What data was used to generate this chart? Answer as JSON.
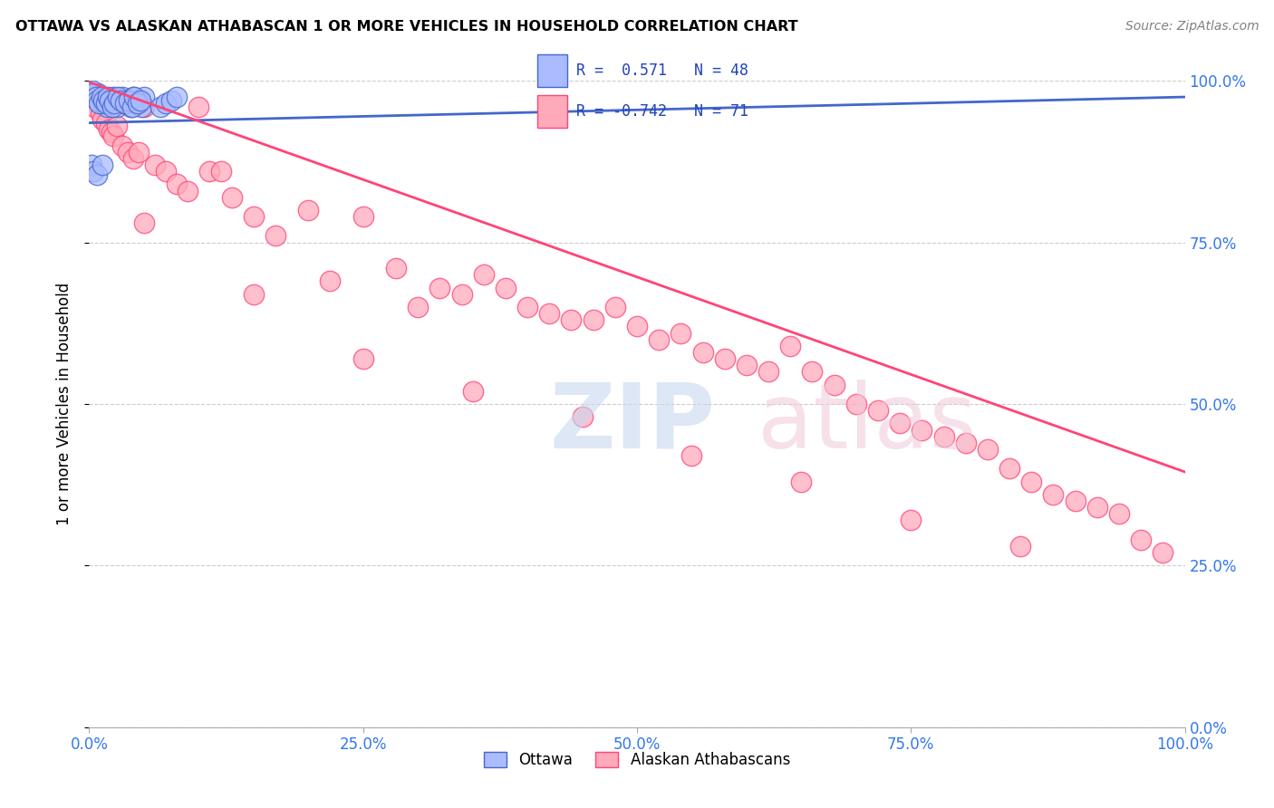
{
  "title": "OTTAWA VS ALASKAN ATHABASCAN 1 OR MORE VEHICLES IN HOUSEHOLD CORRELATION CHART",
  "source_text": "Source: ZipAtlas.com",
  "ylabel": "1 or more Vehicles in Household",
  "legend_ottawa": "Ottawa",
  "legend_alaskan": "Alaskan Athabascans",
  "R_ottawa": 0.571,
  "N_ottawa": 48,
  "R_alaskan": -0.742,
  "N_alaskan": 71,
  "ottawa_color": "#aabbff",
  "alaskan_color": "#ffaabb",
  "trendline_ottawa_color": "#4466cc",
  "trendline_alaskan_color": "#ff4477",
  "ottawa_x": [
    0.005,
    0.008,
    0.01,
    0.012,
    0.014,
    0.016,
    0.018,
    0.02,
    0.022,
    0.025,
    0.028,
    0.03,
    0.032,
    0.035,
    0.038,
    0.04,
    0.042,
    0.045,
    0.048,
    0.05,
    0.003,
    0.004,
    0.006,
    0.007,
    0.009,
    0.011,
    0.013,
    0.015,
    0.017,
    0.019,
    0.021,
    0.023,
    0.026,
    0.029,
    0.033,
    0.036,
    0.039,
    0.041,
    0.044,
    0.047,
    0.002,
    0.004,
    0.007,
    0.012,
    0.065,
    0.07,
    0.075,
    0.08
  ],
  "ottawa_y": [
    0.975,
    0.98,
    0.97,
    0.965,
    0.975,
    0.96,
    0.97,
    0.965,
    0.975,
    0.96,
    0.97,
    0.975,
    0.965,
    0.97,
    0.96,
    0.975,
    0.965,
    0.97,
    0.96,
    0.975,
    0.985,
    0.98,
    0.975,
    0.97,
    0.965,
    0.975,
    0.97,
    0.965,
    0.975,
    0.97,
    0.96,
    0.965,
    0.975,
    0.97,
    0.965,
    0.97,
    0.96,
    0.975,
    0.965,
    0.97,
    0.87,
    0.86,
    0.855,
    0.87,
    0.96,
    0.965,
    0.97,
    0.975
  ],
  "alaskan_x": [
    0.005,
    0.01,
    0.012,
    0.015,
    0.018,
    0.02,
    0.022,
    0.025,
    0.03,
    0.035,
    0.04,
    0.045,
    0.05,
    0.06,
    0.07,
    0.08,
    0.09,
    0.1,
    0.11,
    0.12,
    0.13,
    0.15,
    0.17,
    0.2,
    0.22,
    0.25,
    0.28,
    0.3,
    0.32,
    0.34,
    0.36,
    0.38,
    0.4,
    0.42,
    0.44,
    0.46,
    0.48,
    0.5,
    0.52,
    0.54,
    0.56,
    0.58,
    0.6,
    0.62,
    0.64,
    0.66,
    0.68,
    0.7,
    0.72,
    0.74,
    0.76,
    0.78,
    0.8,
    0.82,
    0.84,
    0.86,
    0.88,
    0.9,
    0.92,
    0.94,
    0.96,
    0.98,
    0.05,
    0.15,
    0.25,
    0.35,
    0.45,
    0.55,
    0.65,
    0.75,
    0.85
  ],
  "alaskan_y": [
    0.96,
    0.95,
    0.94,
    0.935,
    0.925,
    0.92,
    0.915,
    0.93,
    0.9,
    0.89,
    0.88,
    0.89,
    0.96,
    0.87,
    0.86,
    0.84,
    0.83,
    0.96,
    0.86,
    0.86,
    0.82,
    0.79,
    0.76,
    0.8,
    0.69,
    0.79,
    0.71,
    0.65,
    0.68,
    0.67,
    0.7,
    0.68,
    0.65,
    0.64,
    0.63,
    0.63,
    0.65,
    0.62,
    0.6,
    0.61,
    0.58,
    0.57,
    0.56,
    0.55,
    0.59,
    0.55,
    0.53,
    0.5,
    0.49,
    0.47,
    0.46,
    0.45,
    0.44,
    0.43,
    0.4,
    0.38,
    0.36,
    0.35,
    0.34,
    0.33,
    0.29,
    0.27,
    0.78,
    0.67,
    0.57,
    0.52,
    0.48,
    0.42,
    0.38,
    0.32,
    0.28
  ],
  "xlim": [
    0.0,
    1.0
  ],
  "ylim": [
    0.0,
    1.0
  ],
  "xticks": [
    0.0,
    0.25,
    0.5,
    0.75,
    1.0
  ],
  "xticklabels": [
    "0.0%",
    "25.0%",
    "50.0%",
    "75.0%",
    "100.0%"
  ],
  "yticks": [
    0.0,
    0.25,
    0.5,
    0.75,
    1.0
  ],
  "right_ytick_labels": [
    "0.0%",
    "25.0%",
    "50.0%",
    "75.0%",
    "100.0%"
  ],
  "background_color": "#ffffff",
  "grid_color": "#cccccc"
}
